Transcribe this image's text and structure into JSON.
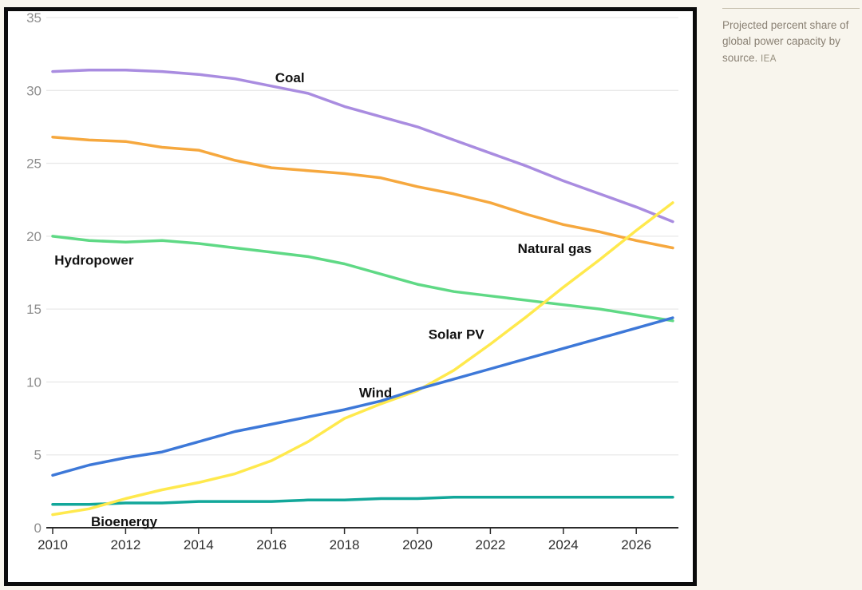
{
  "caption": {
    "text": "Projected percent share of global power capacity by source.",
    "source": "IEA"
  },
  "chart_data": {
    "type": "line",
    "title": "Projected percent share of global power capacity by source",
    "xlabel": "",
    "ylabel": "",
    "x": [
      2010,
      2011,
      2012,
      2013,
      2014,
      2015,
      2016,
      2017,
      2018,
      2019,
      2020,
      2021,
      2022,
      2023,
      2024,
      2025,
      2026,
      2027
    ],
    "xlim": [
      2010,
      2027
    ],
    "ylim": [
      0,
      35
    ],
    "x_ticks": [
      2010,
      2012,
      2014,
      2016,
      2018,
      2020,
      2022,
      2024,
      2026
    ],
    "y_ticks": [
      0,
      5,
      10,
      15,
      20,
      25,
      30,
      35
    ],
    "grid": true,
    "legend_position": "inline-labels",
    "series": [
      {
        "name": "Coal",
        "color": "#a98ce0",
        "values": [
          31.3,
          31.4,
          31.4,
          31.3,
          31.1,
          30.8,
          30.3,
          29.8,
          28.9,
          28.2,
          27.5,
          26.6,
          25.7,
          24.8,
          23.8,
          22.9,
          22.0,
          21.0
        ],
        "label": {
          "text": "Coal",
          "year": 2016.1,
          "value": 30.55
        }
      },
      {
        "name": "Natural gas",
        "color": "#f6a83e",
        "values": [
          26.8,
          26.6,
          26.5,
          26.1,
          25.9,
          25.2,
          24.7,
          24.5,
          24.3,
          24.0,
          23.4,
          22.9,
          22.3,
          21.5,
          20.8,
          20.3,
          19.7,
          19.2
        ],
        "label": {
          "text": "Natural gas",
          "year": 2022.75,
          "value": 18.85
        }
      },
      {
        "name": "Hydropower",
        "color": "#5fd985",
        "values": [
          20.0,
          19.7,
          19.6,
          19.7,
          19.5,
          19.2,
          18.9,
          18.6,
          18.1,
          17.4,
          16.7,
          16.2,
          15.9,
          15.6,
          15.3,
          15.0,
          14.6,
          14.2
        ],
        "label": {
          "text": "Hydropower",
          "year": 2010.05,
          "value": 18.05
        }
      },
      {
        "name": "Bioenergy",
        "color": "#12a79a",
        "values": [
          1.6,
          1.6,
          1.7,
          1.7,
          1.8,
          1.8,
          1.8,
          1.9,
          1.9,
          2.0,
          2.0,
          2.1,
          2.1,
          2.1,
          2.1,
          2.1,
          2.1,
          2.1
        ],
        "label": {
          "text": "Bioenergy",
          "year": 2011.05,
          "value": 0.1
        }
      },
      {
        "name": "Solar PV",
        "color": "#ffe94d",
        "values": [
          0.9,
          1.3,
          2.0,
          2.6,
          3.1,
          3.7,
          4.6,
          5.9,
          7.5,
          8.5,
          9.4,
          10.8,
          12.6,
          14.5,
          16.5,
          18.4,
          20.4,
          22.3
        ],
        "label": {
          "text": "Solar PV",
          "year": 2020.3,
          "value": 12.95
        }
      },
      {
        "name": "Wind",
        "color": "#3d78d8",
        "values": [
          3.6,
          4.3,
          4.8,
          5.2,
          5.9,
          6.6,
          7.1,
          7.6,
          8.1,
          8.7,
          9.5,
          10.2,
          10.9,
          11.6,
          12.3,
          13.0,
          13.7,
          14.4
        ],
        "label": {
          "text": "Wind",
          "year": 2018.4,
          "value": 8.95
        }
      }
    ],
    "style": {
      "grid_color": "#e9e9e9",
      "axis_color": "#2b2b2b",
      "y_tick_label_color": "#8e8e8e",
      "x_tick_label_color": "#2f2f2f",
      "series_label_color": "#111111",
      "line_width": 3.5
    }
  }
}
